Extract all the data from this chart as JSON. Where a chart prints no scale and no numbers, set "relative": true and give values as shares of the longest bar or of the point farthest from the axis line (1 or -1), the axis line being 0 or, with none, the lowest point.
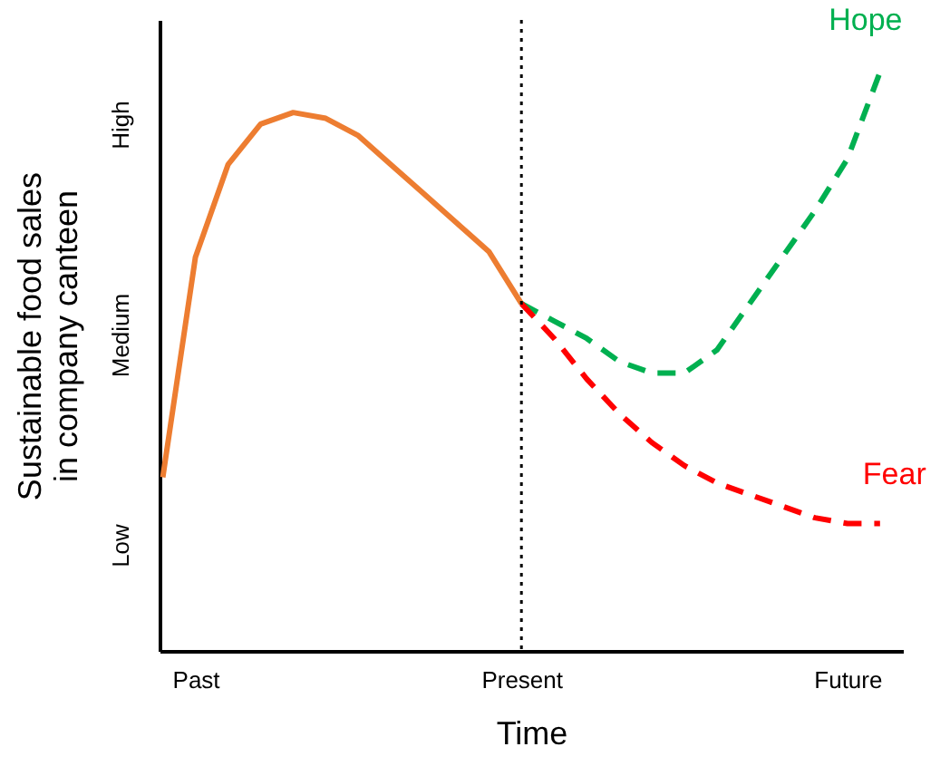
{
  "chart_data": {
    "type": "line",
    "relative": true,
    "xlabel": "Time",
    "ylabel": "Sustainable food sales in company canteen",
    "categories": [
      null,
      "Past",
      null,
      null,
      null,
      null,
      null,
      null,
      null,
      null,
      null,
      "Present",
      null,
      null,
      null,
      null,
      null,
      null,
      null,
      null,
      null,
      "Future",
      null
    ],
    "annotations": [
      "Low",
      "Medium",
      "High"
    ],
    "grid": false,
    "legend": false,
    "ref_lines": [
      {
        "axis": "x",
        "value": "Present",
        "label": null,
        "color": "#000000",
        "line_style": "dotted"
      }
    ],
    "series": [
      {
        "color": "#ed7d31",
        "line_style": "solid",
        "values": [
          0.3,
          0.68,
          0.84,
          0.91,
          0.93,
          0.92,
          0.89,
          0.84,
          0.79,
          0.74,
          0.69,
          0.6,
          null,
          null,
          null,
          null,
          null,
          null,
          null,
          null,
          null,
          null,
          null
        ]
      },
      {
        "name": "Hope",
        "color": "#00b050",
        "line_style": "dashed",
        "values": [
          null,
          null,
          null,
          null,
          null,
          null,
          null,
          null,
          null,
          null,
          null,
          0.6,
          0.57,
          0.54,
          0.5,
          0.48,
          0.48,
          0.52,
          0.6,
          0.68,
          0.76,
          0.85,
          1.0
        ]
      },
      {
        "name": "Fear",
        "color": "#ff0000",
        "line_style": "dashed",
        "values": [
          null,
          null,
          null,
          null,
          null,
          null,
          null,
          null,
          null,
          null,
          null,
          0.6,
          0.54,
          0.47,
          0.41,
          0.36,
          0.32,
          0.29,
          0.27,
          0.25,
          0.23,
          0.22,
          0.22
        ]
      }
    ]
  }
}
